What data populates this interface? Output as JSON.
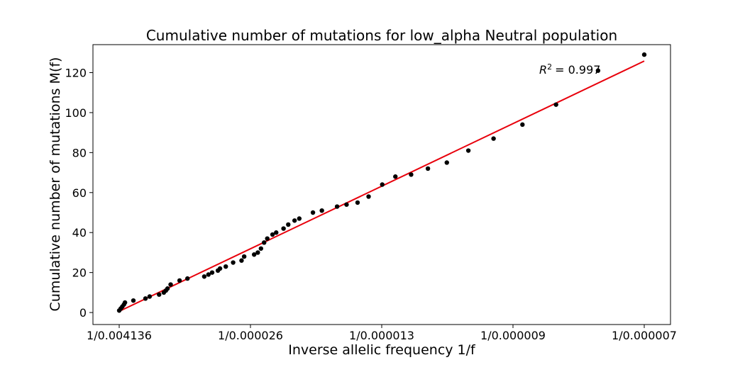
{
  "chart_data": {
    "type": "scatter",
    "title": "Cumulative number of mutations for low_alpha Neutral population",
    "xlabel": "Inverse allelic frequency 1/f",
    "ylabel": "Cumulative number of mutations M(f)",
    "x_tick_labels": [
      "1/0.004136",
      "1/0.000026",
      "1/0.000013",
      "1/0.000009",
      "1/0.000007"
    ],
    "y_ticks": [
      0,
      20,
      40,
      60,
      80,
      100,
      120
    ],
    "xlim": [
      0,
      1
    ],
    "ylim": [
      -6,
      134
    ],
    "grid": false,
    "annotation": {
      "label": "R",
      "superscript": "2",
      "text": "= 0.997"
    },
    "points": {
      "color": "#000000",
      "x": [
        0.0,
        0.003,
        0.006,
        0.009,
        0.011,
        0.027,
        0.05,
        0.058,
        0.076,
        0.085,
        0.089,
        0.092,
        0.098,
        0.115,
        0.13,
        0.162,
        0.17,
        0.177,
        0.188,
        0.192,
        0.203,
        0.217,
        0.233,
        0.238,
        0.257,
        0.264,
        0.27,
        0.276,
        0.282,
        0.292,
        0.299,
        0.313,
        0.322,
        0.334,
        0.343,
        0.369,
        0.386,
        0.415,
        0.433,
        0.454,
        0.475,
        0.501,
        0.526,
        0.556,
        0.588,
        0.624,
        0.665,
        0.713,
        0.768,
        0.832,
        0.912,
        1.0
      ],
      "y": [
        1,
        2,
        3,
        4,
        5,
        6,
        7,
        8,
        9,
        10,
        11,
        12,
        14,
        16,
        17,
        18,
        19,
        20,
        21,
        22,
        23,
        25,
        26,
        28,
        29,
        30,
        32,
        35,
        37,
        39,
        40,
        42,
        44,
        46,
        47,
        50,
        51,
        53,
        54,
        55,
        58,
        64,
        68,
        69,
        72,
        75,
        81,
        87,
        94,
        104,
        121,
        129
      ]
    },
    "fit_line": {
      "color": "#e8000b",
      "x": [
        0,
        1
      ],
      "y": [
        0.6,
        125.8
      ]
    }
  }
}
